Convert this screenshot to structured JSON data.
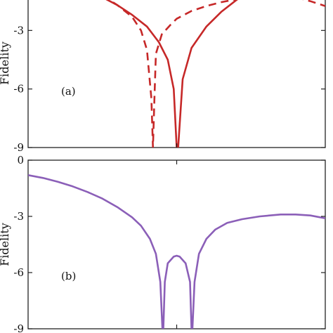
{
  "chart_data": [
    {
      "type": "line",
      "panel_label": "(a)",
      "ylabel": "Fidelity",
      "ylim": [
        -9,
        0
      ],
      "yticks": [
        -3,
        -6,
        -9
      ],
      "ytick_labels": [
        "-3",
        "-6",
        "-9"
      ],
      "xlim": [
        0,
        1
      ],
      "xticks": [
        0.5
      ],
      "series": [
        {
          "style": "solid",
          "color": "#c62828",
          "x": [
            0.0,
            0.05,
            0.1,
            0.15,
            0.2,
            0.25,
            0.3,
            0.35,
            0.4,
            0.44,
            0.47,
            0.49,
            0.5,
            0.505,
            0.52,
            0.55,
            0.6,
            0.65,
            0.7,
            0.75,
            0.8,
            0.85,
            0.9,
            0.95,
            1.0
          ],
          "y": [
            -0.3,
            -0.4,
            -0.55,
            -0.75,
            -1.0,
            -1.3,
            -1.7,
            -2.2,
            -2.8,
            -3.6,
            -4.5,
            -6.0,
            -9.0,
            -9.0,
            -5.5,
            -3.9,
            -2.8,
            -2.05,
            -1.45,
            -0.95,
            -0.5,
            -0.1,
            0.3,
            0.7,
            1.0
          ]
        },
        {
          "style": "dashed",
          "color": "#c62828",
          "x": [
            0.1,
            0.15,
            0.2,
            0.25,
            0.3,
            0.35,
            0.38,
            0.4,
            0.415,
            0.42,
            0.425,
            0.43,
            0.45,
            0.48,
            0.5,
            0.55,
            0.6,
            0.65,
            0.7,
            0.75,
            0.8,
            0.85,
            0.9,
            0.95,
            1.0
          ],
          "y": [
            0.0,
            -0.45,
            -0.8,
            -1.2,
            -1.7,
            -2.3,
            -3.0,
            -4.0,
            -6.5,
            -9.0,
            -6.5,
            -4.2,
            -3.2,
            -2.7,
            -2.4,
            -2.0,
            -1.75,
            -1.55,
            -1.4,
            -1.25,
            -1.2,
            -1.2,
            -1.3,
            -1.5,
            -1.75
          ]
        }
      ]
    },
    {
      "type": "line",
      "panel_label": "(b)",
      "ylabel": "Fidelity",
      "ylim": [
        -9,
        0
      ],
      "yticks": [
        0,
        -3,
        -6,
        -9
      ],
      "ytick_labels": [
        "0",
        "-3",
        "-6",
        "-9"
      ],
      "xlim": [
        0,
        1
      ],
      "xticks": [
        0.5
      ],
      "series": [
        {
          "style": "solid",
          "color": "#8b5fb8",
          "x": [
            0.0,
            0.05,
            0.1,
            0.15,
            0.2,
            0.25,
            0.3,
            0.35,
            0.38,
            0.41,
            0.43,
            0.445,
            0.452,
            0.455,
            0.46,
            0.47,
            0.49,
            0.5,
            0.51,
            0.53,
            0.545,
            0.55,
            0.553,
            0.56,
            0.575,
            0.6,
            0.63,
            0.67,
            0.72,
            0.78,
            0.85,
            0.9,
            0.95,
            1.0
          ],
          "y": [
            -0.8,
            -0.95,
            -1.15,
            -1.4,
            -1.7,
            -2.05,
            -2.5,
            -3.05,
            -3.5,
            -4.2,
            -5.0,
            -6.5,
            -9.0,
            -9.0,
            -6.5,
            -5.5,
            -5.15,
            -5.1,
            -5.15,
            -5.5,
            -6.5,
            -9.0,
            -9.0,
            -6.5,
            -5.0,
            -4.2,
            -3.7,
            -3.35,
            -3.15,
            -3.0,
            -2.9,
            -2.9,
            -2.95,
            -3.1
          ]
        }
      ]
    }
  ]
}
